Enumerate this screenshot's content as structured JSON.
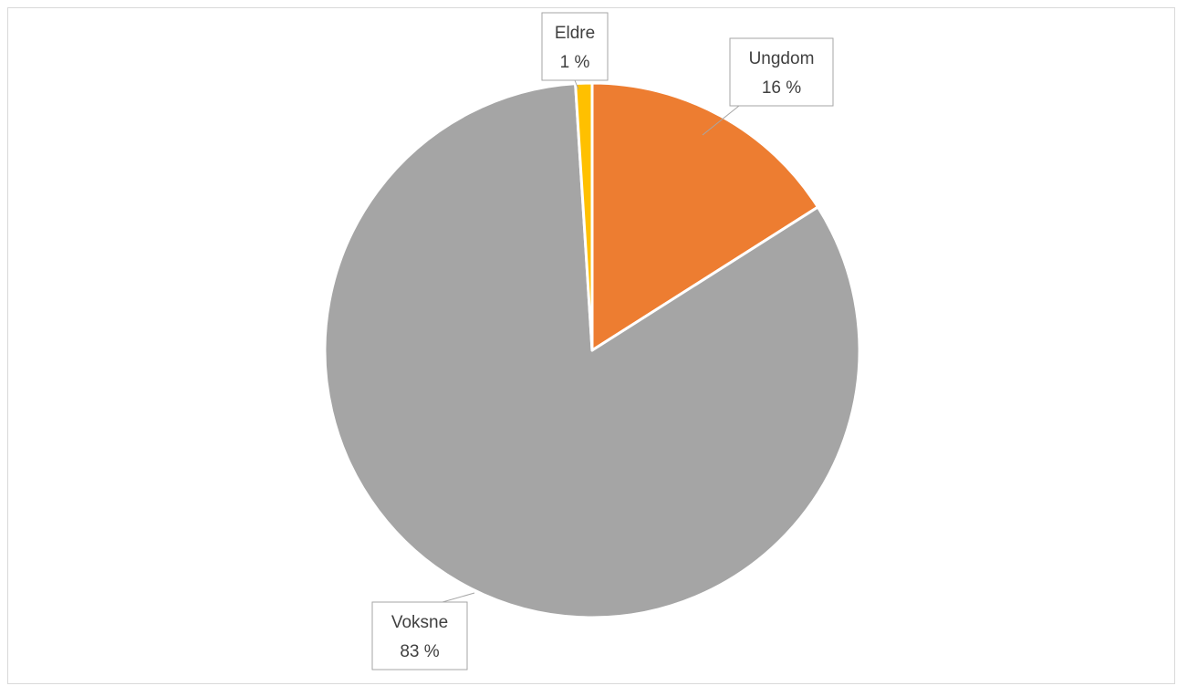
{
  "chart_data": {
    "type": "pie",
    "categories": [
      "Ungdom",
      "Voksne",
      "Eldre"
    ],
    "values": [
      16,
      83,
      1
    ],
    "data_labels": [
      "16 %",
      "83 %",
      "1 %"
    ],
    "colors": [
      "#ED7D31",
      "#A5A5A5",
      "#FFC000"
    ],
    "start_angle": "12 o'clock, clockwise",
    "legend": "none",
    "title": ""
  }
}
